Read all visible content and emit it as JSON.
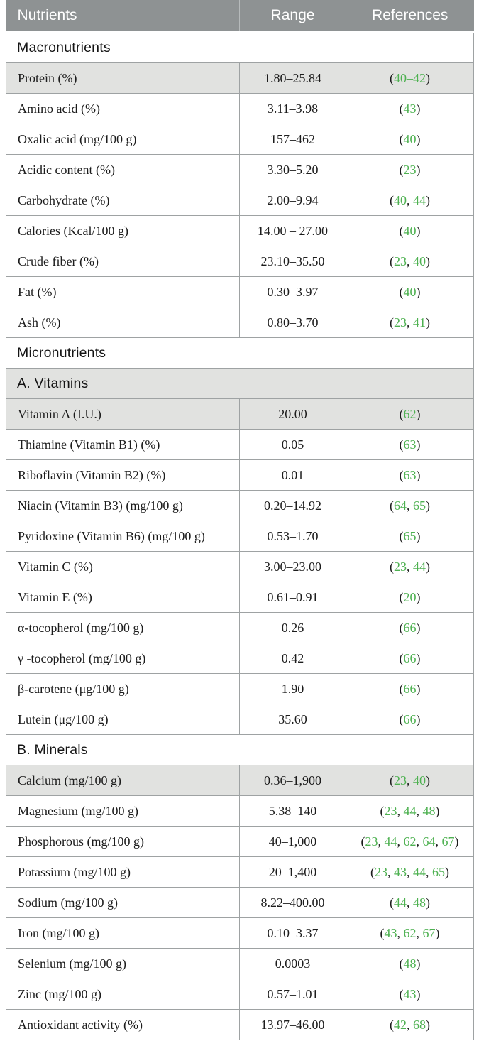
{
  "colors": {
    "header_bg": "#8e9293",
    "header_text": "#ffffff",
    "header_divider": "#b6babb",
    "highlight_bg": "#e1e2e0",
    "border": "#9ea2a3",
    "text": "#1c1c1c",
    "reference_green": "#4eb151"
  },
  "table": {
    "columns": [
      {
        "label": "Nutrients"
      },
      {
        "label": "Range"
      },
      {
        "label": "References"
      }
    ],
    "rows": [
      {
        "type": "section",
        "label": "Macronutrients",
        "highlight": false
      },
      {
        "type": "data",
        "nutrient": "Protein (%)",
        "range": "1.80–25.84",
        "refs": [
          "40–42"
        ],
        "highlight": true
      },
      {
        "type": "data",
        "nutrient": "Amino acid (%)",
        "range": "3.11–3.98",
        "refs": [
          "43"
        ],
        "highlight": false
      },
      {
        "type": "data",
        "nutrient": "Oxalic acid (mg/100 g)",
        "range": "157–462",
        "refs": [
          "40"
        ],
        "highlight": false
      },
      {
        "type": "data",
        "nutrient": "Acidic content (%)",
        "range": "3.30–5.20",
        "refs": [
          "23"
        ],
        "highlight": false
      },
      {
        "type": "data",
        "nutrient": "Carbohydrate (%)",
        "range": "2.00–9.94",
        "refs": [
          "40",
          "44"
        ],
        "highlight": false
      },
      {
        "type": "data",
        "nutrient": "Calories (Kcal/100 g)",
        "range": "14.00 – 27.00",
        "refs": [
          "40"
        ],
        "highlight": false
      },
      {
        "type": "data",
        "nutrient": "Crude fiber (%)",
        "range": "23.10–35.50",
        "refs": [
          "23",
          "40"
        ],
        "highlight": false
      },
      {
        "type": "data",
        "nutrient": "Fat (%)",
        "range": "0.30–3.97",
        "refs": [
          "40"
        ],
        "highlight": false
      },
      {
        "type": "data",
        "nutrient": "Ash (%)",
        "range": "0.80–3.70",
        "refs": [
          "23",
          "41"
        ],
        "highlight": false
      },
      {
        "type": "section",
        "label": "Micronutrients",
        "highlight": false
      },
      {
        "type": "section",
        "label": "A. Vitamins",
        "highlight": true
      },
      {
        "type": "data",
        "nutrient": "Vitamin A (I.U.)",
        "range": "20.00",
        "refs": [
          "62"
        ],
        "highlight": true
      },
      {
        "type": "data",
        "nutrient": "Thiamine (Vitamin B1) (%)",
        "range": "0.05",
        "refs": [
          "63"
        ],
        "highlight": false
      },
      {
        "type": "data",
        "nutrient": "Riboflavin (Vitamin B2) (%)",
        "range": "0.01",
        "refs": [
          "63"
        ],
        "highlight": false
      },
      {
        "type": "data",
        "nutrient": "Niacin (Vitamin B3) (mg/100 g)",
        "range": "0.20–14.92",
        "refs": [
          "64",
          "65"
        ],
        "highlight": false
      },
      {
        "type": "data",
        "nutrient": "Pyridoxine (Vitamin B6) (mg/100 g)",
        "range": "0.53–1.70",
        "refs": [
          "65"
        ],
        "highlight": false
      },
      {
        "type": "data",
        "nutrient": "Vitamin C (%)",
        "range": "3.00–23.00",
        "refs": [
          "23",
          "44"
        ],
        "highlight": false
      },
      {
        "type": "data",
        "nutrient": "Vitamin E (%)",
        "range": "0.61–0.91",
        "refs": [
          "20"
        ],
        "highlight": false
      },
      {
        "type": "data",
        "nutrient": "α-tocopherol (mg/100 g)",
        "range": "0.26",
        "refs": [
          "66"
        ],
        "highlight": false
      },
      {
        "type": "data",
        "nutrient": "γ -tocopherol (mg/100 g)",
        "range": "0.42",
        "refs": [
          "66"
        ],
        "highlight": false
      },
      {
        "type": "data",
        "nutrient": "β-carotene (μg/100 g)",
        "range": "1.90",
        "refs": [
          "66"
        ],
        "highlight": false
      },
      {
        "type": "data",
        "nutrient": "Lutein (μg/100 g)",
        "range": "35.60",
        "refs": [
          "66"
        ],
        "highlight": false
      },
      {
        "type": "section",
        "label": "B. Minerals",
        "highlight": false
      },
      {
        "type": "data",
        "nutrient": "Calcium (mg/100 g)",
        "range": "0.36–1,900",
        "refs": [
          "23",
          "40"
        ],
        "highlight": true
      },
      {
        "type": "data",
        "nutrient": "Magnesium (mg/100 g)",
        "range": "5.38–140",
        "refs": [
          "23",
          "44",
          "48"
        ],
        "highlight": false
      },
      {
        "type": "data",
        "nutrient": "Phosphorous (mg/100 g)",
        "range": "40–1,000",
        "refs": [
          "23",
          "44",
          "62",
          "64",
          "67"
        ],
        "highlight": false
      },
      {
        "type": "data",
        "nutrient": "Potassium (mg/100 g)",
        "range": "20–1,400",
        "refs": [
          "23",
          "43",
          "44",
          "65"
        ],
        "highlight": false
      },
      {
        "type": "data",
        "nutrient": "Sodium (mg/100 g)",
        "range": "8.22–400.00",
        "refs": [
          "44",
          "48"
        ],
        "highlight": false
      },
      {
        "type": "data",
        "nutrient": "Iron (mg/100 g)",
        "range": "0.10–3.37",
        "refs": [
          "43",
          "62",
          "67"
        ],
        "highlight": false
      },
      {
        "type": "data",
        "nutrient": "Selenium (mg/100 g)",
        "range": "0.0003",
        "refs": [
          "48"
        ],
        "highlight": false
      },
      {
        "type": "data",
        "nutrient": "Zinc (mg/100 g)",
        "range": "0.57–1.01",
        "refs": [
          "43"
        ],
        "highlight": false
      },
      {
        "type": "data",
        "nutrient": "Antioxidant activity (%)",
        "range": "13.97–46.00",
        "refs": [
          "42",
          "68"
        ],
        "highlight": false
      }
    ]
  }
}
